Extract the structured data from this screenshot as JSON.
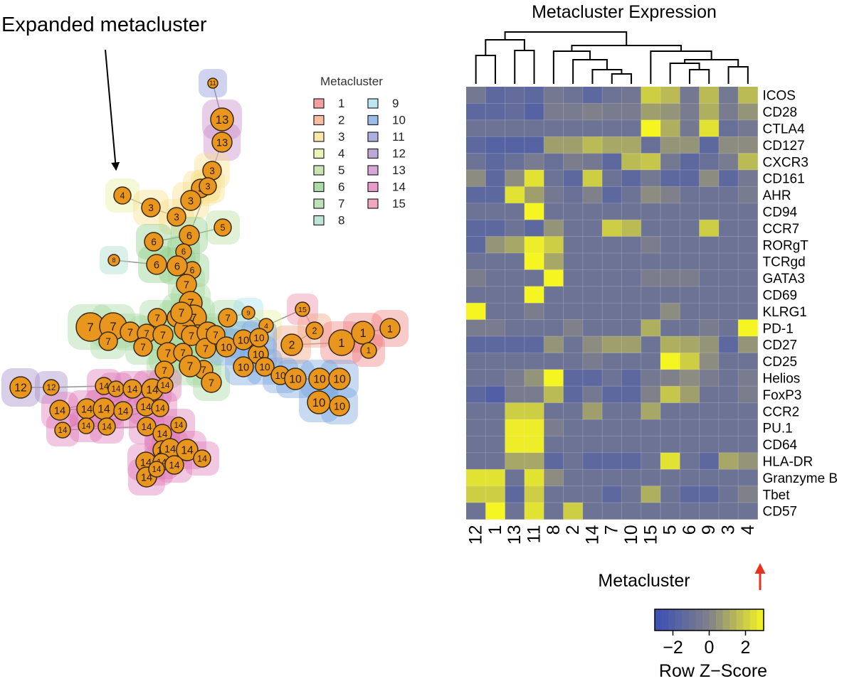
{
  "network": {
    "annotation": "Expanded metacluster",
    "legend_title": "Metacluster",
    "legend": [
      {
        "label": "1",
        "color": "#f08080"
      },
      {
        "label": "2",
        "color": "#f4a582"
      },
      {
        "label": "3",
        "color": "#f7e08a"
      },
      {
        "label": "4",
        "color": "#e6f0a0"
      },
      {
        "label": "5",
        "color": "#b5dd9a"
      },
      {
        "label": "6",
        "color": "#8fd08a"
      },
      {
        "label": "7",
        "color": "#a6d8a0"
      },
      {
        "label": "8",
        "color": "#a8dcc8"
      },
      {
        "label": "9",
        "color": "#a6e0f0"
      },
      {
        "label": "10",
        "color": "#7aa6e0"
      },
      {
        "label": "11",
        "color": "#8f96d8"
      },
      {
        "label": "12",
        "color": "#a68cc8"
      },
      {
        "label": "13",
        "color": "#c98ac8"
      },
      {
        "label": "14",
        "color": "#e07ab8"
      },
      {
        "label": "15",
        "color": "#ef8aa8"
      }
    ],
    "node_color": "#e8961e"
  },
  "chart_data": {
    "type": "heatmap",
    "title": "Metacluster Expression",
    "xlabel": "Metacluster",
    "columns": [
      "12",
      "1",
      "13",
      "11",
      "8",
      "2",
      "14",
      "7",
      "10",
      "15",
      "5",
      "6",
      "9",
      "3",
      "4"
    ],
    "rows": [
      "ICOS",
      "CD28",
      "CTLA4",
      "CD127",
      "CXCR3",
      "CD161",
      "AHR",
      "CD94",
      "CCR7",
      "RORgT",
      "TCRgd",
      "GATA3",
      "CD69",
      "KLRG1",
      "PD-1",
      "CD27",
      "CD25",
      "Helios",
      "FoxP3",
      "CCR2",
      "PU.1",
      "CD64",
      "HLA-DR",
      "Granzyme B",
      "Tbet",
      "CD57"
    ],
    "values": [
      [
        -0.5,
        -1.5,
        -1.2,
        -1.5,
        -0.5,
        -0.8,
        -1.5,
        -0.8,
        -0.6,
        2.0,
        1.5,
        -0.5,
        1.5,
        -0.5,
        1.5
      ],
      [
        -1.5,
        -1.5,
        -1.2,
        -1.8,
        -0.3,
        -0.3,
        0.0,
        -0.3,
        -0.3,
        0.8,
        0.5,
        -0.3,
        1.2,
        -0.3,
        0.5
      ],
      [
        -0.8,
        -0.8,
        -0.8,
        -0.8,
        -0.8,
        -0.8,
        -0.8,
        -0.8,
        -0.8,
        3.0,
        1.2,
        -0.5,
        2.5,
        -1.0,
        -0.5
      ],
      [
        -1.5,
        -1.8,
        -1.8,
        -1.8,
        0.8,
        0.8,
        1.5,
        1.0,
        1.0,
        -1.0,
        0.5,
        0.5,
        -1.5,
        0.3,
        0.3
      ],
      [
        -0.8,
        -1.5,
        -1.0,
        -0.3,
        -1.0,
        -0.2,
        -0.5,
        -1.5,
        1.5,
        1.8,
        -0.5,
        -1.5,
        -1.0,
        -0.3,
        1.5
      ],
      [
        0.3,
        -1.5,
        0.3,
        2.5,
        -0.8,
        -1.5,
        2.0,
        -0.8,
        -1.5,
        -0.5,
        -1.5,
        -1.5,
        0.3,
        -1.5,
        -0.5
      ],
      [
        -1.5,
        -1.5,
        2.5,
        0.8,
        -0.5,
        -1.0,
        0.0,
        -1.5,
        -0.8,
        0.3,
        0.0,
        -0.8,
        -0.8,
        -0.8,
        -0.3
      ],
      [
        -0.8,
        -0.8,
        -0.8,
        3.0,
        -0.8,
        -0.8,
        -0.8,
        -0.8,
        -0.8,
        -0.8,
        -0.8,
        -0.8,
        -0.8,
        -0.8,
        -0.8
      ],
      [
        -1.5,
        -1.5,
        -0.8,
        -1.5,
        0.5,
        -0.8,
        -0.8,
        2.0,
        1.5,
        -0.8,
        -0.8,
        -0.8,
        2.0,
        -0.8,
        -0.8
      ],
      [
        -1.5,
        0.5,
        1.0,
        2.8,
        2.0,
        -0.8,
        -0.8,
        -0.8,
        -0.8,
        -0.2,
        -0.8,
        -0.8,
        -0.8,
        -0.8,
        -0.8
      ],
      [
        -0.8,
        -0.8,
        -0.8,
        3.0,
        1.0,
        -0.8,
        -0.8,
        -0.8,
        -0.8,
        -0.8,
        -0.8,
        -0.8,
        -0.8,
        -0.8,
        -0.8
      ],
      [
        -0.2,
        -0.8,
        -0.8,
        -0.8,
        3.0,
        -0.8,
        -0.8,
        -0.8,
        -0.8,
        -0.2,
        -0.2,
        -0.2,
        -0.8,
        -0.8,
        -0.8
      ],
      [
        -0.8,
        -0.8,
        -0.8,
        3.0,
        -0.8,
        -0.8,
        -0.8,
        -0.8,
        -0.8,
        -0.8,
        -0.8,
        -0.8,
        -0.8,
        -0.8,
        -0.8
      ],
      [
        3.0,
        -0.8,
        -0.8,
        -0.2,
        -0.8,
        -0.8,
        -0.8,
        -0.8,
        -0.8,
        -0.8,
        0.3,
        -0.8,
        -0.8,
        -0.8,
        -0.8
      ],
      [
        -0.3,
        -0.3,
        -0.8,
        -0.8,
        -0.8,
        0.0,
        -0.8,
        -0.8,
        -0.8,
        1.2,
        -0.8,
        -0.8,
        -0.3,
        -0.8,
        3.0
      ],
      [
        -1.5,
        -1.5,
        -1.5,
        -1.5,
        0.5,
        -0.8,
        0.3,
        0.8,
        0.8,
        -0.8,
        1.2,
        1.0,
        0.5,
        -1.5,
        0.5
      ],
      [
        -0.8,
        -0.8,
        -0.8,
        -0.8,
        -0.8,
        -0.8,
        -0.3,
        -0.8,
        -0.8,
        -0.8,
        3.0,
        2.0,
        0.3,
        -0.8,
        -0.8
      ],
      [
        -0.8,
        -0.8,
        -0.3,
        0.5,
        3.0,
        -1.5,
        -1.5,
        -0.8,
        -1.5,
        -0.5,
        0.0,
        0.3,
        -0.3,
        -0.8,
        -0.3
      ],
      [
        -1.5,
        -2.0,
        -0.3,
        -0.3,
        1.5,
        -1.5,
        -0.5,
        -1.5,
        -1.5,
        0.0,
        1.8,
        0.8,
        -0.8,
        -0.8,
        -0.2
      ],
      [
        -0.8,
        -0.8,
        2.0,
        2.0,
        -0.8,
        -0.8,
        0.8,
        -0.8,
        -0.8,
        1.0,
        -0.8,
        -0.8,
        -0.8,
        -0.8,
        -0.8
      ],
      [
        -0.8,
        -0.8,
        2.8,
        2.8,
        -0.2,
        -0.8,
        -0.8,
        -0.8,
        -0.8,
        -0.8,
        -0.8,
        -0.8,
        -0.8,
        -0.8,
        -0.8
      ],
      [
        -0.8,
        -0.8,
        2.8,
        2.8,
        -0.8,
        -0.8,
        -0.8,
        -0.8,
        -0.8,
        -0.8,
        -0.8,
        -0.8,
        -0.8,
        -0.8,
        -0.8
      ],
      [
        -0.8,
        -0.8,
        1.0,
        1.0,
        -1.5,
        -0.8,
        -1.5,
        -1.5,
        -1.5,
        -0.8,
        2.5,
        -0.8,
        -1.5,
        1.0,
        0.5
      ],
      [
        2.5,
        2.5,
        -0.8,
        2.5,
        0.3,
        -0.8,
        -0.8,
        -0.8,
        -0.8,
        -0.8,
        -0.8,
        -0.8,
        -0.8,
        -0.8,
        -0.8
      ],
      [
        2.0,
        2.0,
        -1.5,
        2.0,
        -0.8,
        -0.8,
        -0.8,
        -1.5,
        -0.8,
        1.2,
        -0.8,
        -1.5,
        -1.5,
        -0.8,
        0.0
      ],
      [
        -0.8,
        3.0,
        -0.8,
        2.5,
        -0.8,
        2.0,
        -0.8,
        -0.8,
        -0.8,
        -0.8,
        -0.8,
        -0.8,
        -0.8,
        -0.8,
        -0.8
      ]
    ],
    "color_scale": {
      "low": "#3a4fb4",
      "mid": "#80808a",
      "high": "#f5f522",
      "min": -3,
      "max": 3
    },
    "colorbar": {
      "ticks": [
        "−2",
        "0",
        "2"
      ],
      "tick_values": [
        -2,
        0,
        2
      ],
      "label": "Row Z−Score"
    },
    "highlight_column": "4",
    "highlight_color": "#e8321e"
  }
}
